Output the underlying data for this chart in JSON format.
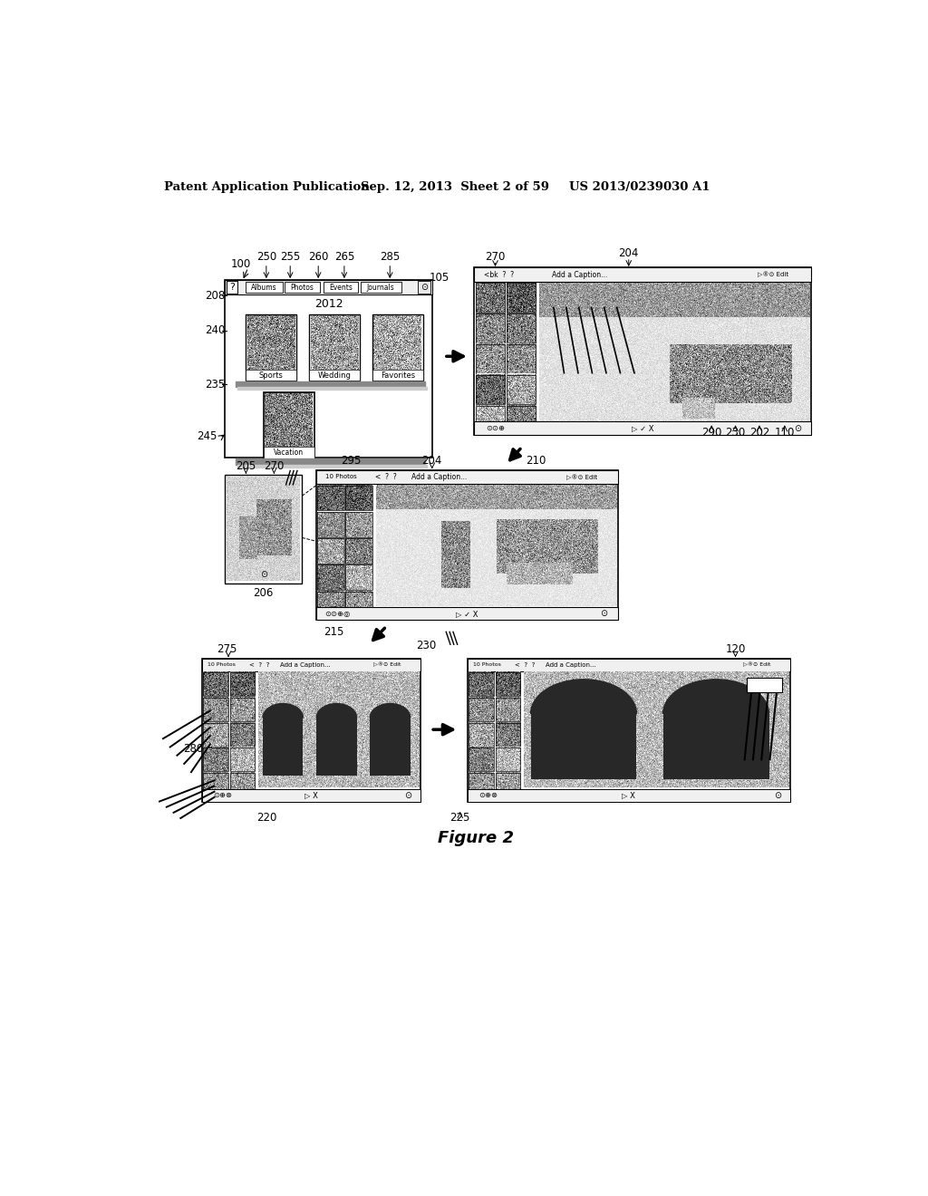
{
  "title": "Figure 2",
  "header_left": "Patent Application Publication",
  "header_center": "Sep. 12, 2013  Sheet 2 of 59",
  "header_right": "US 2013/0239030 A1",
  "bg_color": "#ffffff",
  "lfs": 8.5,
  "hfs": 9.5
}
